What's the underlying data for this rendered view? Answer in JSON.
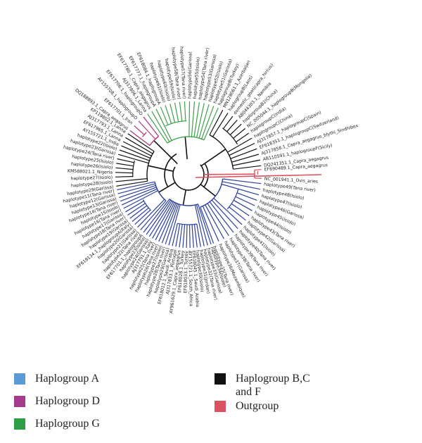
{
  "colors": {
    "haplogroup_a": "#2b3f9e",
    "haplogroup_d": "#b0317c",
    "haplogroup_g": "#3fa04a",
    "haplogroup_bcf": "#111111",
    "outgroup": "#d9525e",
    "legend_a": "#5b9bd5",
    "legend_d": "#a53b8c",
    "legend_g": "#2e9e47",
    "legend_bcf": "#111111",
    "legend_outgroup": "#d9525e"
  },
  "legend": {
    "haplogroup_a": "Haplogroup A",
    "haplogroup_d": "Haplogroup D",
    "haplogroup_g": "Haplogroup G",
    "haplogroup_bcf_line1": "Haplogroup B,C",
    "haplogroup_bcf_line2": "and F",
    "outgroup": "Outgroup"
  },
  "tree_labels": {
    "green": [
      "AJ317806.1_Lanna",
      "EF617780.1_Capra_aegagrus",
      "EF617777.1_haplogroupA",
      "EF618084.1_haplogroupA",
      "haplotype61(Isiolo)",
      "haplotype60(Isiolo)",
      "haplotype59(Isiolo)",
      "haplotype58(Tana river)",
      "haplotype57(Tana river)",
      "haplotype56(Garissa)",
      "haplotype55(Isiolo)",
      "haplotype54(Tana river)",
      "haplotype53(Garissa)",
      "haplotype52(Isiolo)",
      "haplotype51(Garissa)",
      "haplogroupB(Turkey)"
    ],
    "black_right": [
      "MN128061.1_Azerbaijan",
      "haplogroupB(Laos)",
      "domestic_goat(capra_hircus)",
      "AB044303.1_Namibia",
      "haplogroupB2(China)",
      "NC_005044.1_haplogroupB(Mongolia)",
      "haplogroupC(India)",
      "haplogroupC(China)",
      "AJ317857.1_haplogroupC(Spain)",
      "EF618351.1_haplogroupC(Switzerland)",
      "AJ317858.1_Capra_aegagrus_blythi_Sindhibex",
      "AB110591.1_haplogroupF(Sicily)",
      "DQ241351.1_Capra_aegagrus"
    ],
    "outgroup": [
      "EF690489.1_Capra_aegagrus",
      "NC_001941.1_Ovis_aries"
    ],
    "blue_right": [
      "haplotype49(Tana river)",
      "haplotype48(Isiolo)",
      "haplotype47(Isiolo)",
      "haplotype46(Garissa)",
      "haplotype45(Isiolo)",
      "haplotype44(Isiolo)",
      "haplotype43(Tana river)",
      "haplotype42(Garissa)",
      "haplotype41(Isiolo)",
      "haplotype40(Tana river)",
      "haplotype39(Tana river)",
      "haplotype38(Tana river)",
      "haplotype37(Garissa)",
      "haplotype36(Mozambique)",
      "haplotype35(Tana river)"
    ],
    "blue_bottom": [
      "haplotype34(Isiolo)",
      "haplotype33(Garissa)",
      "haplotype32(Tana river)",
      "haplotype31(Jordan)",
      "haplotype30(Isiolo)",
      "EF618045.1_Saudi_Arabia",
      "AY155721.1_South_Africa",
      "EF618033.1_Turkey",
      "EF618028.1_Turkey",
      "AY961629.1_Capra_aegagrus",
      "AJ317833.1_Portugal",
      "EF618012.1_Saudi_Arabia",
      "haplotype29(Garissa)",
      "haplotype28(Tana river)",
      "haplotype27(Isiolo)",
      "haplotype26(Tana river)",
      "haplotype25(Tana river)",
      "AJ317791.1_Italy",
      "haplotype24(Garissa)",
      "haplotype23(Isiolo)",
      "EF617701.1_haplogroupA"
    ],
    "blue_left": [
      "haplotype22(Tana river)",
      "haplotype21(Garissa)",
      "haplotype20(Garissa)",
      "EF618134.1_haplogroupA(Italy)",
      "haplotype19(Garissa)",
      "haplotype18(Tana river)",
      "haplotype17(Garissa)",
      "haplotype16(Tana river)",
      "haplotype15(Isiolo)",
      "haplotype14(Tana river)",
      "haplotype13(Garissa)",
      "haplotype12(Garissa)",
      "haplotype11(Tana river)"
    ],
    "black_left": [
      "haplotype29(Garissa)",
      "haplotype28(Isiolo)",
      "haplotype27(Isiolo)",
      "KM588021.1_Nigeria",
      "haplotype26(Isiolo)",
      "haplotype25(Isiolo)",
      "haplotype24(Tana river)",
      "haplotype23(Garissa)",
      "haplotype22(Isiolo)",
      "AY155721.1_India",
      "EF617965.1_Lanna",
      "AJ317793.1_Lanna",
      "KP119802.1_Lanna"
    ],
    "pink": [
      "DQ188893.1_Capra_aegagrus",
      "EF617701.1_Iran",
      "AY155708.1_haplogroupD",
      "EF617706.1_haplogroupD"
    ]
  }
}
